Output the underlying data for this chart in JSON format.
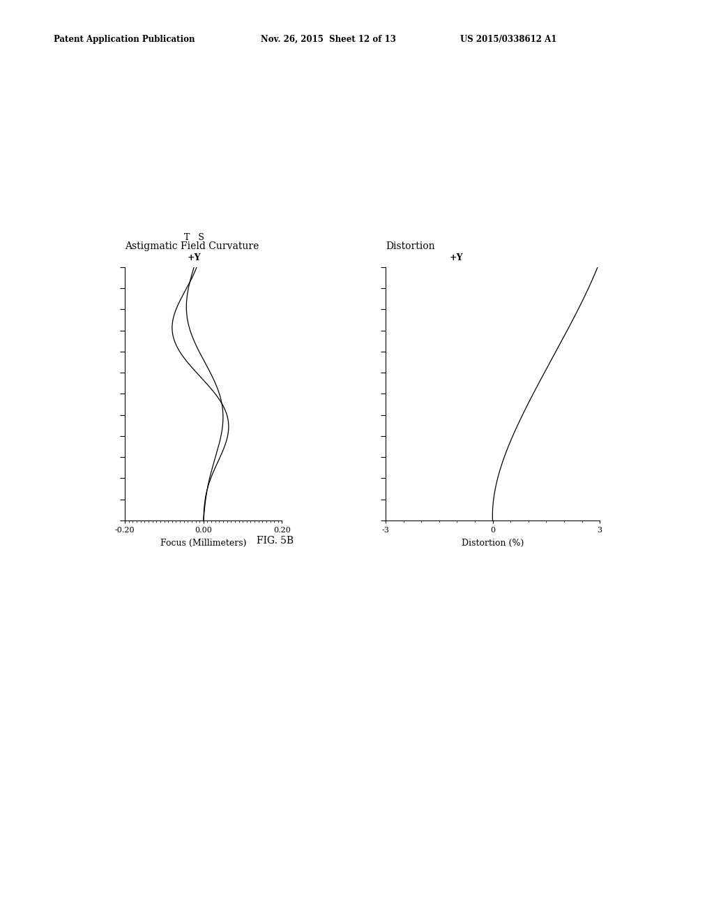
{
  "header_left": "Patent Application Publication",
  "header_mid": "Nov. 26, 2015  Sheet 12 of 13",
  "header_right": "US 2015/0338612 A1",
  "fig_label": "FIG. 5B",
  "left_title": "Astigmatic Field Curvature",
  "left_ts_label_T": "T",
  "left_ts_label_S": "S",
  "left_y_label": "+Y",
  "left_xlabel": "Focus (Millimeters)",
  "left_xlim": [
    -0.2,
    0.2
  ],
  "left_xticks": [
    -0.2,
    0.0,
    0.2
  ],
  "right_title": "Distortion",
  "right_y_label": "+Y",
  "right_xlabel": "Distortion (%)",
  "right_xlim": [
    -3,
    3
  ],
  "right_xticks": [
    -3,
    0,
    3
  ],
  "background_color": "#ffffff",
  "line_color": "#000000",
  "n_yticks": 12,
  "y_max": 1.0
}
